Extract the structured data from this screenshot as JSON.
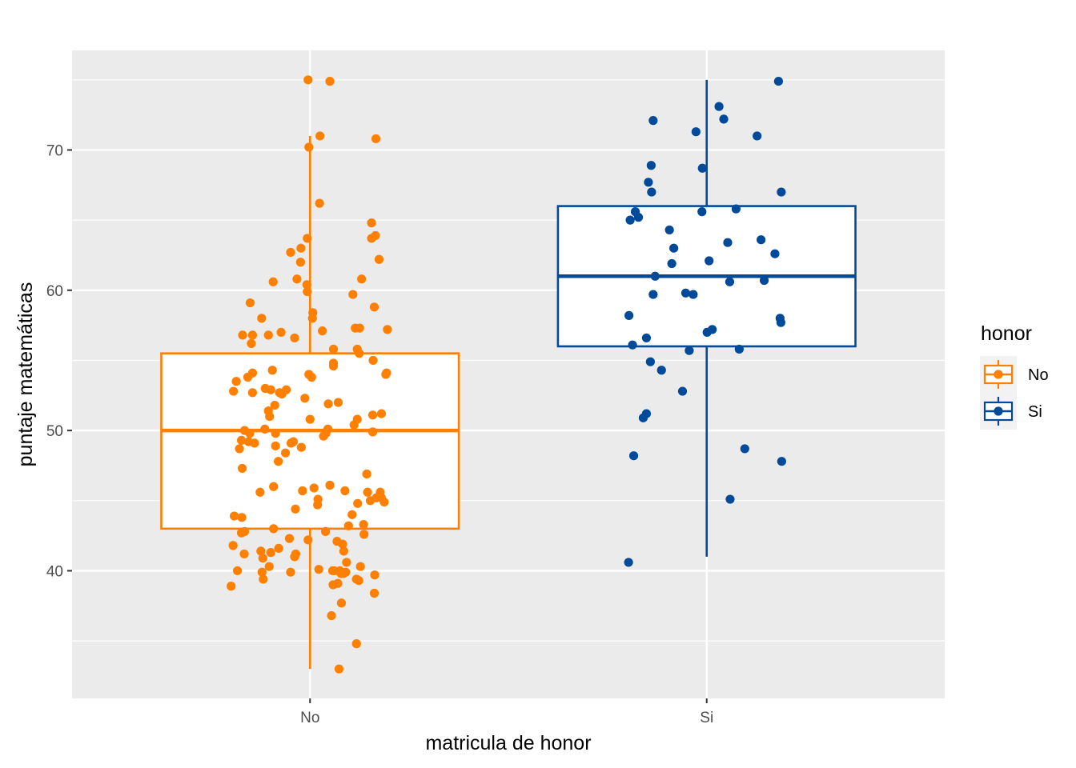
{
  "chart_data": {
    "type": "boxplot",
    "xlabel": "matricula de honor",
    "ylabel": "puntaje matemáticas",
    "categories": [
      "No",
      "Si"
    ],
    "ylim": [
      30.9,
      77.1
    ],
    "yticks": [
      40,
      50,
      60,
      70
    ],
    "grid": true,
    "legend": {
      "title": "honor",
      "placement": "right",
      "entries": [
        "No",
        "Si"
      ]
    },
    "colors": {
      "No": "#ff7f00",
      "Si": "#014a9a",
      "panel": "#ebebeb",
      "grid": "#ffffff"
    },
    "series": [
      {
        "name": "No",
        "box": {
          "min": 33,
          "q1": 43,
          "median": 50,
          "q3": 55.5,
          "max": 71
        },
        "points": [
          [
            -0.005,
            75
          ],
          [
            0.05,
            74.9
          ],
          [
            0.025,
            71
          ],
          [
            -0.003,
            70.2
          ],
          [
            0.166,
            70.8
          ],
          [
            0.024,
            66.2
          ],
          [
            0.155,
            64.8
          ],
          [
            -0.007,
            63.7
          ],
          [
            0.155,
            63.7
          ],
          [
            0.165,
            63.9
          ],
          [
            -0.023,
            63
          ],
          [
            -0.049,
            62.7
          ],
          [
            -0.024,
            62
          ],
          [
            0.174,
            62.2
          ],
          [
            -0.093,
            60.6
          ],
          [
            -0.033,
            60.8
          ],
          [
            -0.008,
            60.4
          ],
          [
            0.13,
            60.8
          ],
          [
            -0.007,
            59.9
          ],
          [
            0.108,
            59.7
          ],
          [
            -0.151,
            59.1
          ],
          [
            0.162,
            58.8
          ],
          [
            -0.122,
            58
          ],
          [
            0.007,
            58.4
          ],
          [
            0.006,
            58
          ],
          [
            0.031,
            57.1
          ],
          [
            0.114,
            57.3
          ],
          [
            0.125,
            57.3
          ],
          [
            0.195,
            57.2
          ],
          [
            -0.17,
            56.8
          ],
          [
            -0.145,
            56.8
          ],
          [
            -0.105,
            56.8
          ],
          [
            -0.073,
            57
          ],
          [
            -0.039,
            56.6
          ],
          [
            -0.148,
            56.2
          ],
          [
            0.059,
            55.8
          ],
          [
            0.119,
            55.8
          ],
          [
            0.124,
            55.5
          ],
          [
            0.159,
            55
          ],
          [
            0.059,
            54.8
          ],
          [
            0.059,
            54.6
          ],
          [
            -0.186,
            53.5
          ],
          [
            -0.157,
            53.8
          ],
          [
            -0.145,
            54.1
          ],
          [
            -0.095,
            54.3
          ],
          [
            -0.003,
            54
          ],
          [
            0.004,
            53.8
          ],
          [
            0.191,
            54
          ],
          [
            0.193,
            54.1
          ],
          [
            -0.193,
            52.8
          ],
          [
            -0.145,
            52.7
          ],
          [
            -0.113,
            53
          ],
          [
            -0.099,
            52.9
          ],
          [
            -0.077,
            52.7
          ],
          [
            -0.071,
            52.6
          ],
          [
            -0.06,
            52.9
          ],
          [
            -0.013,
            52.3
          ],
          [
            0.046,
            51.9
          ],
          [
            0.071,
            52
          ],
          [
            0.18,
            51.2
          ],
          [
            0.158,
            51.1
          ],
          [
            -0.089,
            51.8
          ],
          [
            -0.105,
            51.4
          ],
          [
            -0.102,
            51
          ],
          [
            0,
            50.8
          ],
          [
            0.119,
            50.8
          ],
          [
            0.111,
            50.4
          ],
          [
            -0.165,
            50
          ],
          [
            -0.152,
            49.8
          ],
          [
            -0.155,
            49.2
          ],
          [
            -0.173,
            49.3
          ],
          [
            -0.178,
            48.7
          ],
          [
            -0.14,
            49.1
          ],
          [
            -0.114,
            50.1
          ],
          [
            -0.087,
            49.8
          ],
          [
            -0.087,
            48.9
          ],
          [
            -0.048,
            49.1
          ],
          [
            -0.042,
            49.2
          ],
          [
            -0.022,
            48.8
          ],
          [
            0.034,
            49.6
          ],
          [
            0.04,
            49.8
          ],
          [
            0.045,
            50.1
          ],
          [
            0.158,
            49.9
          ],
          [
            -0.062,
            48.4
          ],
          [
            -0.08,
            47.8
          ],
          [
            -0.171,
            47.3
          ],
          [
            -0.126,
            45.6
          ],
          [
            -0.092,
            46
          ],
          [
            -0.019,
            45.7
          ],
          [
            0.01,
            45.9
          ],
          [
            0.05,
            46.1
          ],
          [
            0.088,
            45.7
          ],
          [
            0.143,
            46.9
          ],
          [
            0.145,
            45.6
          ],
          [
            0.177,
            45.6
          ],
          [
            0.152,
            45
          ],
          [
            0.167,
            45.2
          ],
          [
            0.18,
            45.2
          ],
          [
            0.187,
            44.9
          ],
          [
            0.12,
            44.8
          ],
          [
            0.02,
            45.1
          ],
          [
            0.019,
            44.7
          ],
          [
            -0.037,
            44.4
          ],
          [
            0.106,
            44
          ],
          [
            0.135,
            43.3
          ],
          [
            0.097,
            43.2
          ],
          [
            -0.191,
            43.9
          ],
          [
            -0.172,
            43.8
          ],
          [
            -0.165,
            42.8
          ],
          [
            -0.173,
            42.7
          ],
          [
            -0.092,
            43
          ],
          [
            -0.005,
            42.2
          ],
          [
            0.039,
            42.8
          ],
          [
            0.068,
            42.1
          ],
          [
            0.082,
            41.9
          ],
          [
            0.136,
            42.6
          ],
          [
            -0.194,
            41.8
          ],
          [
            -0.166,
            41.2
          ],
          [
            -0.124,
            41.4
          ],
          [
            -0.099,
            41.3
          ],
          [
            -0.079,
            41.6
          ],
          [
            -0.052,
            42.3
          ],
          [
            -0.036,
            41.2
          ],
          [
            -0.039,
            41
          ],
          [
            -0.119,
            40.9
          ],
          [
            -0.103,
            40.3
          ],
          [
            0.085,
            41.4
          ],
          [
            0.092,
            40.6
          ],
          [
            0.127,
            40.3
          ],
          [
            0.163,
            39.7
          ],
          [
            -0.183,
            40
          ],
          [
            -0.121,
            39.9
          ],
          [
            -0.118,
            39.4
          ],
          [
            -0.049,
            39.9
          ],
          [
            0.022,
            40.1
          ],
          [
            0.057,
            40
          ],
          [
            0.061,
            40
          ],
          [
            0.075,
            40
          ],
          [
            0.078,
            39.8
          ],
          [
            0.084,
            39.8
          ],
          [
            0.09,
            39.9
          ],
          [
            0.058,
            39
          ],
          [
            0.07,
            39.1
          ],
          [
            0.117,
            39.4
          ],
          [
            0.123,
            39.3
          ],
          [
            -0.199,
            38.9
          ],
          [
            0.162,
            38.4
          ],
          [
            0.079,
            37.7
          ],
          [
            0.054,
            36.8
          ],
          [
            0.117,
            34.8
          ],
          [
            0.073,
            33
          ]
        ]
      },
      {
        "name": "Si",
        "box": {
          "min": 41,
          "q1": 56,
          "median": 61,
          "q3": 66,
          "max": 75
        },
        "points": [
          [
            0.181,
            74.9
          ],
          [
            0.031,
            73.1
          ],
          [
            0.043,
            72.2
          ],
          [
            -0.135,
            72.1
          ],
          [
            -0.027,
            71.3
          ],
          [
            0.127,
            71
          ],
          [
            -0.14,
            68.9
          ],
          [
            -0.011,
            68.7
          ],
          [
            -0.147,
            67.7
          ],
          [
            -0.139,
            67
          ],
          [
            0.188,
            67
          ],
          [
            -0.18,
            65.6
          ],
          [
            -0.172,
            65.2
          ],
          [
            -0.193,
            65
          ],
          [
            -0.012,
            65.6
          ],
          [
            0.074,
            65.8
          ],
          [
            -0.094,
            64.3
          ],
          [
            0.053,
            63.4
          ],
          [
            0.137,
            63.6
          ],
          [
            -0.083,
            63
          ],
          [
            0.172,
            62.6
          ],
          [
            -0.088,
            61.9
          ],
          [
            0.006,
            62.1
          ],
          [
            -0.13,
            61
          ],
          [
            0.058,
            60.6
          ],
          [
            0.145,
            60.7
          ],
          [
            -0.053,
            59.8
          ],
          [
            -0.034,
            59.7
          ],
          [
            -0.135,
            59.7
          ],
          [
            -0.196,
            58.2
          ],
          [
            0.185,
            58
          ],
          [
            0.187,
            57.7
          ],
          [
            0.014,
            57.2
          ],
          [
            0.001,
            57
          ],
          [
            -0.152,
            56.6
          ],
          [
            -0.187,
            56.1
          ],
          [
            0.082,
            55.8
          ],
          [
            -0.044,
            55.7
          ],
          [
            -0.142,
            54.9
          ],
          [
            -0.114,
            54.3
          ],
          [
            -0.061,
            52.8
          ],
          [
            -0.152,
            51.2
          ],
          [
            -0.16,
            50.9
          ],
          [
            0.096,
            48.7
          ],
          [
            -0.184,
            48.2
          ],
          [
            0.189,
            47.8
          ],
          [
            0.059,
            45.1
          ],
          [
            -0.197,
            40.6
          ]
        ]
      }
    ]
  }
}
